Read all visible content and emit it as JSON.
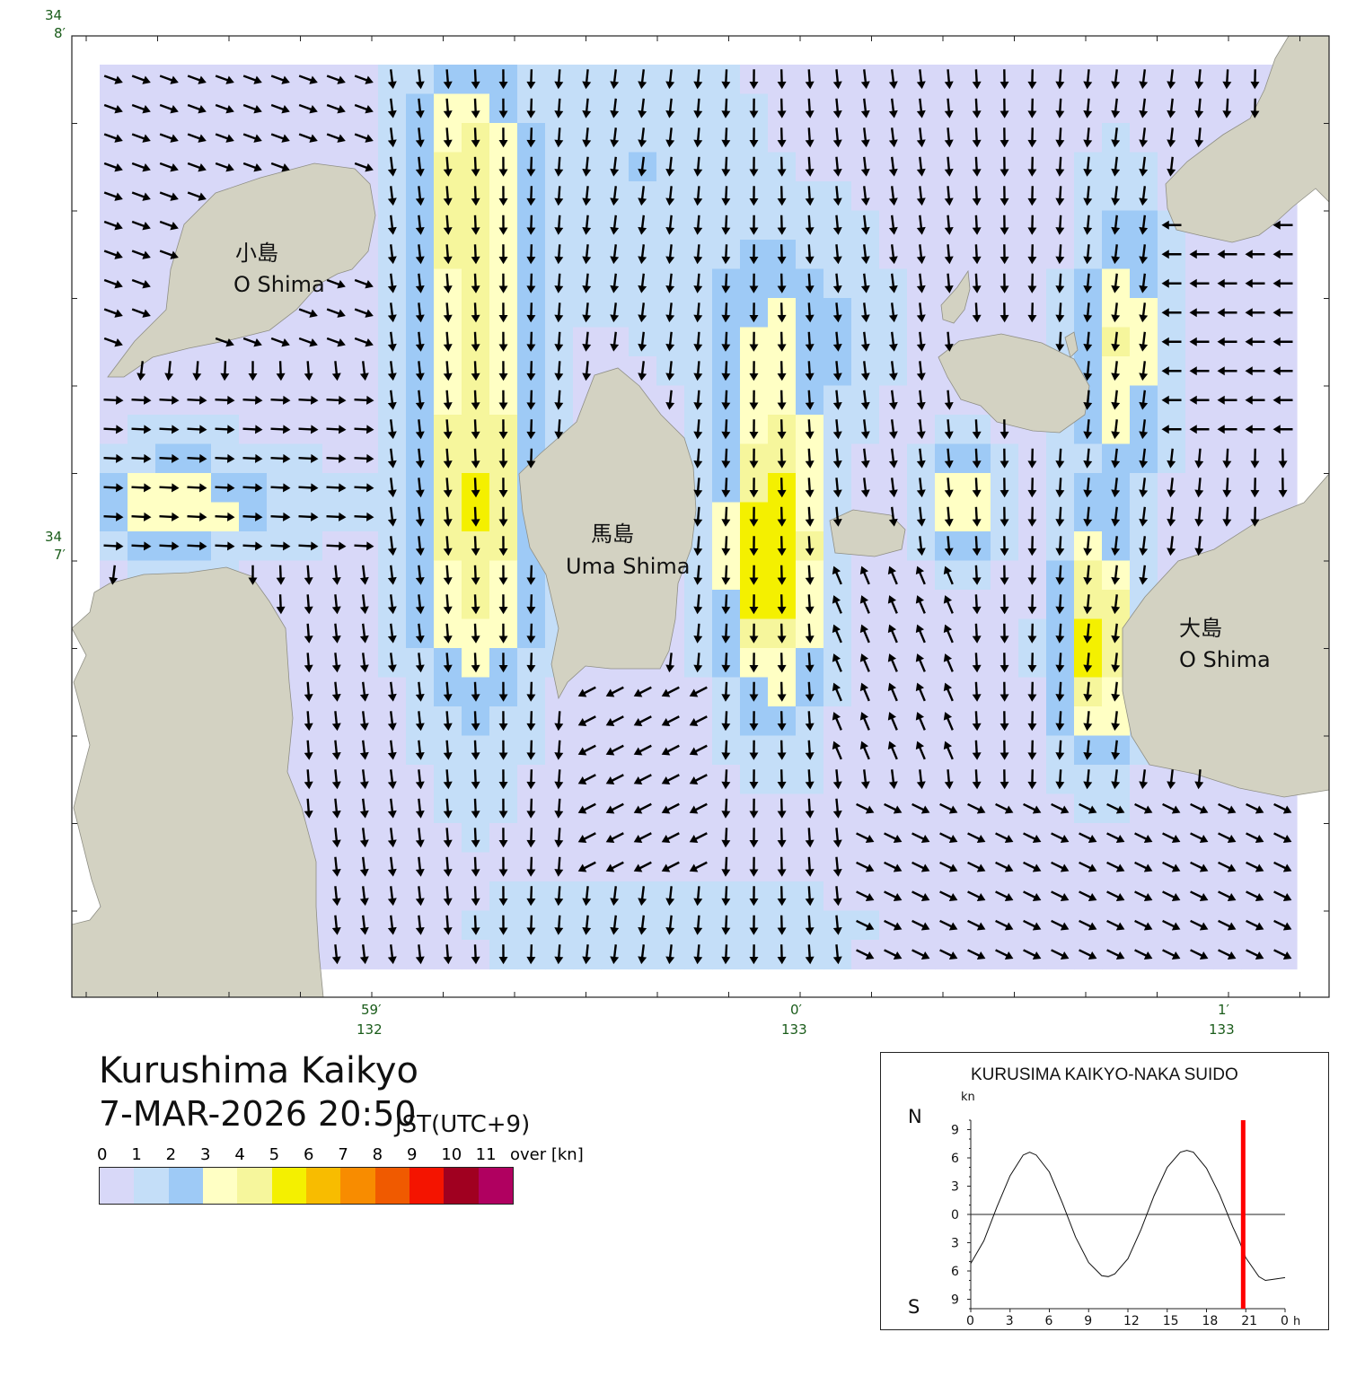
{
  "map": {
    "lat_labels": [
      {
        "deg": "34",
        "min": "8′"
      },
      {
        "deg": "34",
        "min": "7′"
      }
    ],
    "lon_labels": [
      {
        "min": "59′",
        "deg": "132"
      },
      {
        "min": "0′",
        "deg": "133"
      },
      {
        "min": "1′",
        "deg": "133"
      }
    ],
    "places": [
      {
        "jp": "小島",
        "en": "O Shima"
      },
      {
        "jp": "馬島",
        "en": "Uma Shima"
      },
      {
        "jp": "大島",
        "en": "O Shima"
      }
    ],
    "colors": {
      "land": "#d3d2c2",
      "land_edge": "#8f8f85",
      "arrow": "#000000",
      "background": "#ffffff"
    }
  },
  "title": {
    "place": "Kurushima Kaikyo",
    "datetime": "7-MAR-2026 20:50",
    "timezone": "JST(UTC+9)"
  },
  "legend": {
    "labels": [
      "0",
      "1",
      "2",
      "3",
      "4",
      "5",
      "6",
      "7",
      "8",
      "9",
      "10",
      "11",
      "over [kn]"
    ],
    "colors": [
      "#d8d8f8",
      "#c4def8",
      "#9ecaf6",
      "#ffffc4",
      "#f6f69c",
      "#f4f000",
      "#f8bc00",
      "#f88c00",
      "#f05a00",
      "#f41400",
      "#a00020",
      "#b00060"
    ]
  },
  "chart_data": {
    "type": "line",
    "title": "KURUSIMA KAIKYO-NAKA SUIDO",
    "ylabel": "kn",
    "north_label": "N",
    "south_label": "S",
    "y_tick_labels": [
      "9",
      "6",
      "3",
      "0",
      "3",
      "6",
      "9"
    ],
    "y_ticks": [
      9,
      6,
      3,
      0,
      -3,
      -6,
      -9
    ],
    "x_tick_labels": [
      "0",
      "3",
      "6",
      "9",
      "12",
      "15",
      "18",
      "21",
      "0"
    ],
    "x_unit": "h",
    "xlim": [
      0,
      24
    ],
    "ylim": [
      -10,
      10
    ],
    "x": [
      0,
      1,
      2,
      3,
      4,
      4.5,
      5,
      6,
      7,
      8,
      9,
      10,
      10.5,
      11,
      12,
      13,
      14,
      15,
      16,
      16.5,
      17,
      18,
      19,
      20,
      20.5,
      21,
      22,
      22.5,
      23,
      24
    ],
    "y": [
      -5.2,
      -2.8,
      0.8,
      4.1,
      6.3,
      6.6,
      6.3,
      4.5,
      1.2,
      -2.4,
      -5.1,
      -6.5,
      -6.6,
      -6.3,
      -4.7,
      -1.6,
      2.0,
      5.0,
      6.6,
      6.8,
      6.6,
      4.9,
      2.1,
      -1.3,
      -2.8,
      -4.6,
      -6.6,
      -7.0,
      -6.9,
      -6.7
    ],
    "current_time_hour": 20.8,
    "marker_color": "#ff0000"
  }
}
